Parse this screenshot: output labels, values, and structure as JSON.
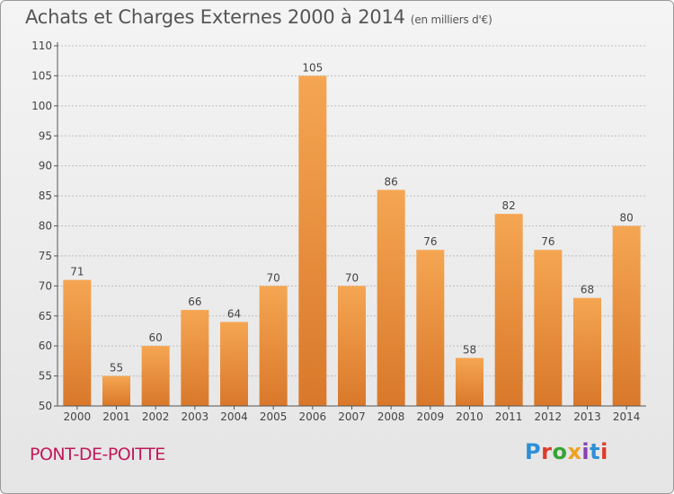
{
  "header": {
    "title": "Achats et Charges Externes 2000 à 2014",
    "unit": "(en milliers d'€)"
  },
  "footer": {
    "town": "PONT-DE-POITTE",
    "brand": "Proxiti",
    "brand_colors": [
      "#2f8fd6",
      "#e03a2a",
      "#3aa335",
      "#f0a020",
      "#8a3fb5",
      "#2f8fd6",
      "#e03a2a"
    ]
  },
  "colors": {
    "bar_light": "#f5a652",
    "bar_dark": "#d9782a",
    "axis": "#555555",
    "grid": "#bdbdbd"
  },
  "chart_data": {
    "type": "bar",
    "title": "Achats et Charges Externes 2000 à 2014",
    "subtitle": "(en milliers d'€)",
    "categories": [
      "2000",
      "2001",
      "2002",
      "2003",
      "2004",
      "2005",
      "2006",
      "2007",
      "2008",
      "2009",
      "2010",
      "2011",
      "2012",
      "2013",
      "2014"
    ],
    "values": [
      71,
      55,
      60,
      66,
      64,
      70,
      105,
      70,
      86,
      76,
      58,
      82,
      76,
      68,
      80
    ],
    "ylim": [
      50,
      110
    ],
    "yticks": [
      50,
      55,
      60,
      65,
      70,
      75,
      80,
      85,
      90,
      95,
      100,
      105,
      110
    ],
    "grid": true,
    "xlabel": "",
    "ylabel": ""
  }
}
